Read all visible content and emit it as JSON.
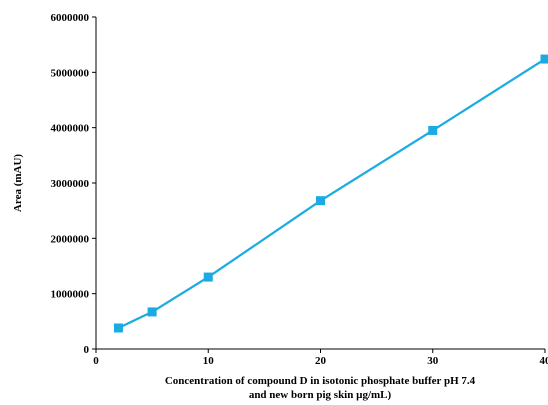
{
  "chart_data": {
    "type": "line",
    "title": "",
    "xlabel": [
      "Concentration of compound D in isotonic phosphate buffer pH 7.4",
      "and new born pig skin µg/mL)"
    ],
    "ylabel": "Area (mAU)",
    "xlim": [
      0,
      40
    ],
    "ylim": [
      0,
      6000000
    ],
    "x_ticks": [
      "0",
      "10",
      "20",
      "30",
      "40"
    ],
    "y_ticks": [
      "0",
      "1000000",
      "2000000",
      "3000000",
      "4000000",
      "5000000",
      "6000000"
    ],
    "grid": false,
    "legend": "none",
    "series": [
      {
        "color": "#1AABE3",
        "marker": "square",
        "points": [
          {
            "x": 2,
            "y": 380000
          },
          {
            "x": 5,
            "y": 670000
          },
          {
            "x": 10,
            "y": 1300000
          },
          {
            "x": 20,
            "y": 2680000
          },
          {
            "x": 30,
            "y": 3950000
          },
          {
            "x": 40,
            "y": 5240000
          }
        ]
      }
    ]
  }
}
